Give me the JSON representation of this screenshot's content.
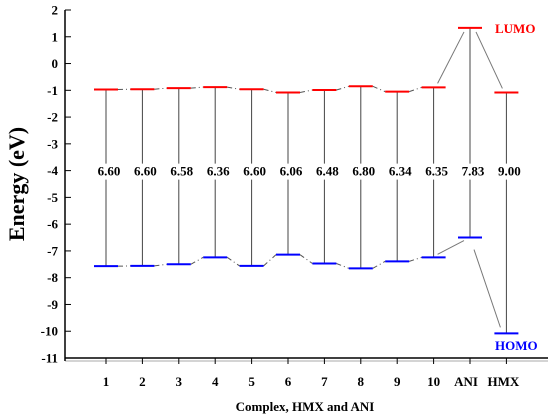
{
  "chart_data": {
    "type": "energy-level diagram",
    "ylabel": "Energy (eV)",
    "xlabel": "Complex, HMX and ANI",
    "ylim": [
      -11,
      2
    ],
    "yticks": [
      2,
      1,
      0,
      -1,
      -2,
      -3,
      -4,
      -5,
      -6,
      -7,
      -8,
      -9,
      -10,
      -11
    ],
    "categories": [
      "1",
      "2",
      "3",
      "4",
      "5",
      "6",
      "7",
      "8",
      "9",
      "10",
      "ANI",
      "HMX"
    ],
    "lumo": [
      -0.97,
      -0.96,
      -0.92,
      -0.88,
      -0.96,
      -1.08,
      -0.99,
      -0.85,
      -1.05,
      -0.89,
      1.33,
      -1.08
    ],
    "homo": [
      -7.57,
      -7.56,
      -7.5,
      -7.24,
      -7.56,
      -7.14,
      -7.47,
      -7.65,
      -7.39,
      -7.24,
      -6.5,
      -10.08
    ],
    "gaps": [
      "6.60",
      "6.60",
      "6.58",
      "6.36",
      "6.60",
      "6.06",
      "6.48",
      "6.80",
      "6.34",
      "6.35",
      "7.83",
      "9.00"
    ],
    "lumo_label": "LUMO",
    "homo_label": "HOMO",
    "lumo_color": "#ff0000",
    "homo_color": "#0000ff",
    "grid": false,
    "legend": "none"
  }
}
